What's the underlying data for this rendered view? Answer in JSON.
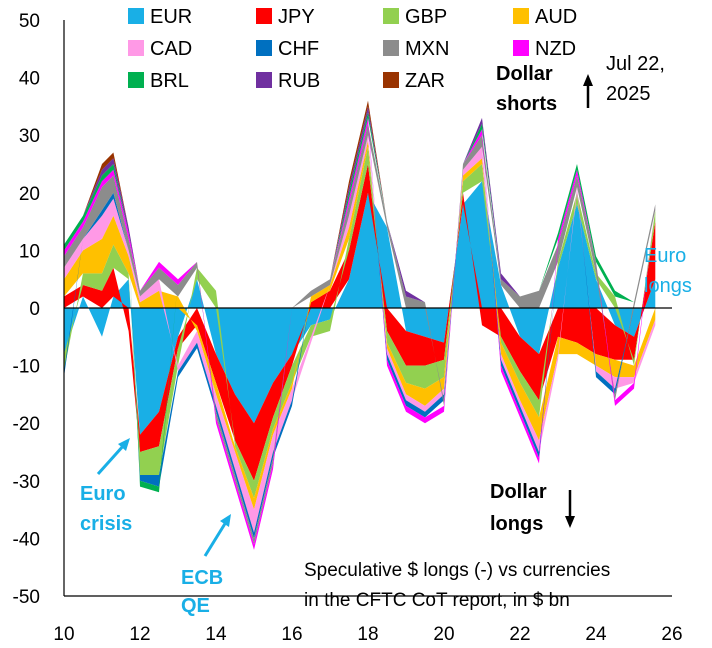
{
  "chart_data": {
    "type": "area",
    "subtype": "stacked, positive and negative",
    "title": "",
    "xlabel": "",
    "ylabel": "",
    "ylim": [
      -50,
      50
    ],
    "xlim": [
      2010,
      2026
    ],
    "x_ticks": [
      "10",
      "12",
      "14",
      "16",
      "18",
      "20",
      "22",
      "24",
      "26"
    ],
    "y_ticks": [
      "50",
      "40",
      "30",
      "20",
      "10",
      "0",
      "-10",
      "-20",
      "-30",
      "-40",
      "-50"
    ],
    "grid": false,
    "legend_position": "top",
    "colors": {
      "EUR": "#19afe6",
      "JPY": "#fe0000",
      "GBP": "#92d050",
      "AUD": "#ffc000",
      "CAD": "#ff99e6",
      "CHF": "#0070c0",
      "MXN": "#8c8c8c",
      "NZD": "#ff00ff",
      "BRL": "#00b050",
      "RUB": "#7030a0",
      "ZAR": "#993300"
    },
    "x": [
      2010.0,
      2010.5,
      2011.0,
      2011.3,
      2011.7,
      2012.0,
      2012.5,
      2013.0,
      2013.5,
      2014.0,
      2014.5,
      2015.0,
      2015.5,
      2016.0,
      2016.5,
      2017.0,
      2017.5,
      2018.0,
      2018.5,
      2019.0,
      2019.5,
      2020.0,
      2020.5,
      2021.0,
      2021.5,
      2022.0,
      2022.5,
      2023.0,
      2023.5,
      2024.0,
      2024.5,
      2025.0,
      2025.56
    ],
    "series": [
      {
        "name": "EUR",
        "values": [
          -8,
          2,
          -5,
          2,
          5,
          -22,
          -18,
          -5,
          5,
          -8,
          -15,
          -20,
          -13,
          -8,
          -3,
          -2,
          5,
          20,
          14,
          -4,
          -5,
          -6,
          18,
          22,
          4,
          -5,
          -8,
          7,
          18,
          5,
          -3,
          -5,
          5
        ]
      },
      {
        "name": "JPY",
        "values": [
          2,
          2,
          3,
          5,
          -4,
          -3,
          -6,
          -2,
          -3,
          -5,
          -8,
          -10,
          -6,
          -2,
          1,
          3,
          5,
          5,
          -4,
          -6,
          -5,
          -3,
          2,
          -3,
          -5,
          -6,
          -8,
          -5,
          -6,
          -8,
          -6,
          -4,
          10
        ]
      },
      {
        "name": "GBP",
        "values": [
          -3,
          2,
          3,
          4,
          1,
          -4,
          -5,
          -3,
          2,
          3,
          -1,
          -3,
          -2,
          -3,
          -2,
          -2,
          2,
          3,
          -2,
          -3,
          -4,
          -3,
          2,
          3,
          -1,
          -2,
          -3,
          1,
          2,
          1,
          2,
          -1,
          2
        ]
      },
      {
        "name": "AUD",
        "values": [
          3,
          4,
          6,
          5,
          3,
          1,
          3,
          2,
          -1,
          -2,
          -1,
          -2,
          -1,
          -1,
          1,
          1,
          2,
          1,
          -1,
          -2,
          -3,
          -2,
          1,
          1,
          -2,
          -3,
          -4,
          -3,
          -2,
          -2,
          -3,
          -2,
          -2
        ]
      },
      {
        "name": "CAD",
        "values": [
          2,
          2,
          4,
          3,
          1,
          1,
          2,
          -1,
          -2,
          -2,
          -3,
          -4,
          -3,
          -2,
          -1,
          0,
          2,
          1,
          -1,
          -1,
          -1,
          -1,
          1,
          2,
          -1,
          -1,
          -2,
          -1,
          1,
          -1,
          -2,
          -1,
          -1
        ]
      },
      {
        "name": "CHF",
        "values": [
          -1,
          0,
          1,
          1,
          0,
          -1,
          -2,
          -1,
          -1,
          -1,
          -1,
          -1,
          -1,
          -1,
          0,
          0,
          0,
          0,
          -1,
          -1,
          -1,
          -1,
          0,
          0,
          -1,
          -1,
          -1,
          0,
          0,
          -1,
          -1,
          0,
          0
        ]
      },
      {
        "name": "MXN",
        "values": [
          2,
          2,
          4,
          3,
          2,
          1,
          2,
          2,
          1,
          -1,
          -1,
          -1,
          -1,
          0,
          1,
          1,
          2,
          2,
          1,
          2,
          1,
          -1,
          1,
          2,
          1,
          2,
          3,
          3,
          2,
          2,
          -1,
          1,
          1
        ]
      },
      {
        "name": "NZD",
        "values": [
          1,
          1,
          1,
          1,
          1,
          0,
          1,
          1,
          0,
          -1,
          -1,
          -1,
          -1,
          0,
          0,
          0,
          1,
          1,
          -1,
          -1,
          -1,
          -1,
          0,
          1,
          -1,
          -1,
          -1,
          1,
          1,
          0,
          -1,
          -1,
          0
        ]
      },
      {
        "name": "BRL",
        "values": [
          1,
          1,
          1,
          1,
          0,
          -1,
          -1,
          0,
          0,
          0,
          0,
          0,
          0,
          0,
          0,
          0,
          1,
          1,
          0,
          0,
          0,
          0,
          0,
          1,
          0,
          0,
          0,
          1,
          1,
          1,
          1,
          0,
          0
        ]
      },
      {
        "name": "RUB",
        "values": [
          0,
          0,
          1,
          1,
          1,
          0,
          0,
          0,
          0,
          0,
          0,
          0,
          0,
          0,
          0,
          0,
          1,
          1,
          0,
          1,
          0,
          0,
          0,
          1,
          1,
          0,
          0,
          0,
          0,
          0,
          0,
          0,
          0
        ]
      },
      {
        "name": "ZAR",
        "values": [
          0,
          0,
          1,
          1,
          0,
          0,
          0,
          0,
          0,
          0,
          0,
          0,
          0,
          0,
          0,
          0,
          1,
          1,
          0,
          0,
          0,
          0,
          0,
          0,
          0,
          0,
          0,
          0,
          0,
          0,
          0,
          0,
          0
        ]
      }
    ],
    "annotations": {
      "euro_crisis": "Euro\ncrisis",
      "ecb_qe": "ECB\nQE",
      "euro_longs": "Euro\nlongs",
      "dollar_shorts": "Dollar\nshorts",
      "dollar_longs": "Dollar\nlongs",
      "date_label": "Jul 22,\n2025",
      "note": "Speculative $ longs (-) vs currencies\nin the CFTC CoT report, in $ bn"
    }
  }
}
